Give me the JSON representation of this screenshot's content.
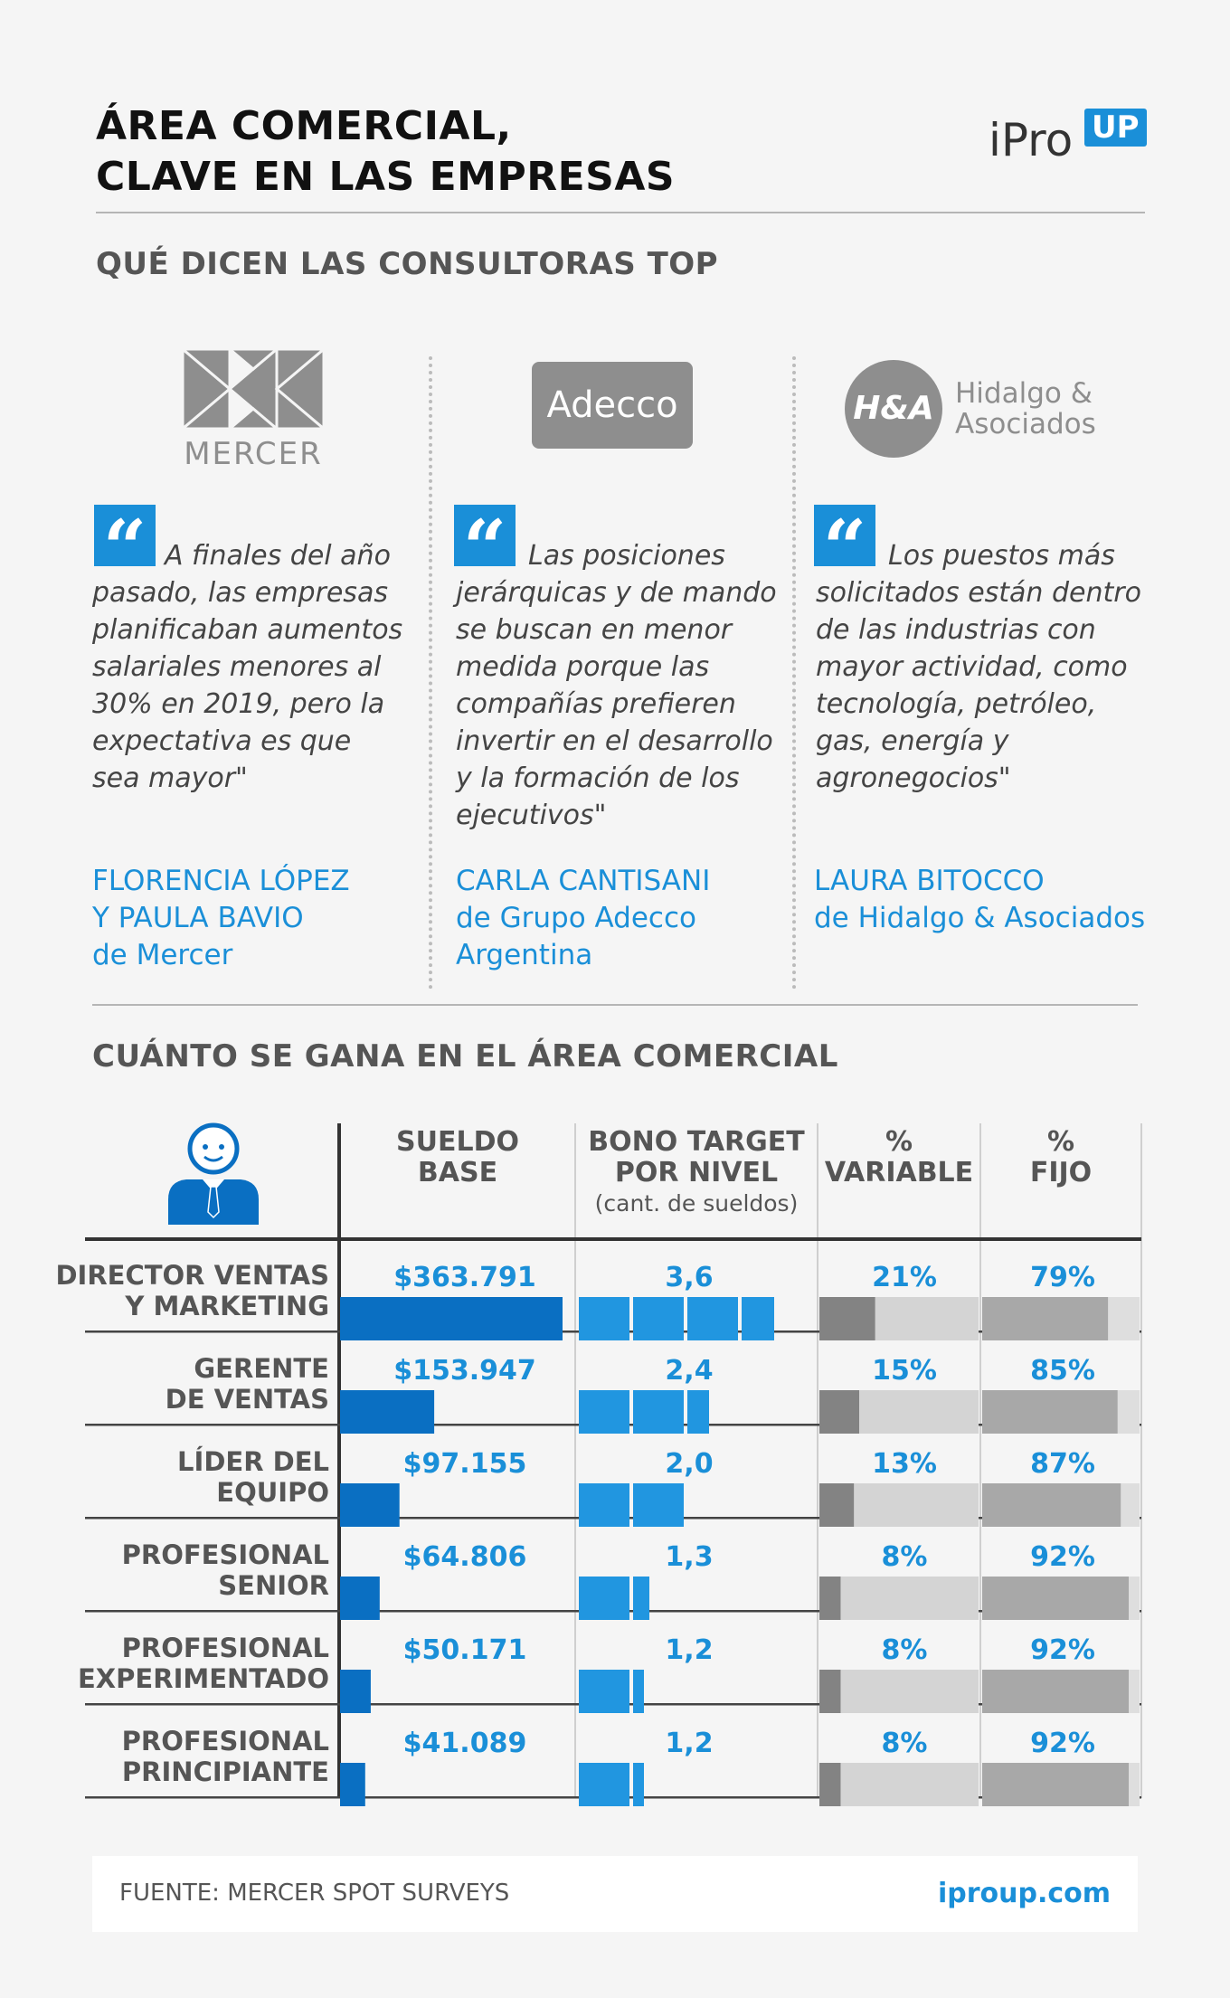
{
  "header": {
    "title": "ÁREA COMERCIAL,\nCLAVE EN LAS EMPRESAS",
    "logo_ipro": "iPro",
    "logo_up": "UP"
  },
  "consultoras": {
    "heading": "QUÉ DICEN LAS CONSULTORAS TOP",
    "logos": {
      "mercer": "MERCER",
      "adecco": "Adecco",
      "hya_mark": "H&A",
      "hya_name": "Hidalgo &\nAsociados"
    },
    "quotes": [
      {
        "lines": [
          "A finales del año",
          "pasado, las empresas",
          "planificaban aumentos",
          "salariales menores al",
          "30% en 2019, pero la",
          "expectativa es que",
          "sea mayor\""
        ],
        "author": "FLORENCIA LÓPEZ\nY PAULA BAVIO\nde Mercer"
      },
      {
        "lines": [
          "Las posiciones",
          "jerárquicas y de mando",
          "se buscan en menor",
          "medida porque las",
          "compañías prefieren",
          "invertir en el desarrollo",
          "y la formación de los",
          "ejecutivos\""
        ],
        "author": "CARLA CANTISANI\nde Grupo Adecco\nArgentina"
      },
      {
        "lines": [
          "Los puestos más",
          "solicitados están dentro",
          "de las industrias con",
          "mayor actividad, como",
          "tecnología, petróleo,",
          "gas, energía  y",
          "agronegocios\""
        ],
        "author": "LAURA BITOCCO\nde Hidalgo & Asociados"
      }
    ]
  },
  "salarios": {
    "heading": "CUÁNTO SE GANA EN EL ÁREA COMERCIAL",
    "col_sueldo": "SUELDO\nBASE",
    "col_bono": "BONO TARGET\nPOR NIVEL",
    "col_bono_sub": "(cant. de sueldos)",
    "col_variable": "%\nVARIABLE",
    "col_fijo": "%\nFIJO"
  },
  "chart_data": {
    "type": "table",
    "title": "CUÁNTO SE GANA EN EL ÁREA COMERCIAL",
    "columns": [
      "SUELDO BASE",
      "BONO TARGET POR NIVEL (cant. de sueldos)",
      "% VARIABLE",
      "% FIJO"
    ],
    "categories": [
      "DIRECTOR VENTAS\nY MARKETING",
      "GERENTE\nDE VENTAS",
      "LÍDER DEL\nEQUIPO",
      "PROFESIONAL\nSENIOR",
      "PROFESIONAL\nEXPERIMENTADO",
      "PROFESIONAL\nPRINCIPIANTE"
    ],
    "sueldo_labels": [
      "$363.791",
      "$153.947",
      "$97.155",
      "$64.806",
      "$50.171",
      "$41.089"
    ],
    "sueldo_values": [
      363791,
      153947,
      97155,
      64806,
      50171,
      41089
    ],
    "bono_labels": [
      "3,6",
      "2,4",
      "2,0",
      "1,3",
      "1,2",
      "1,2"
    ],
    "bono_values": [
      3.6,
      2.4,
      2.0,
      1.3,
      1.2,
      1.2
    ],
    "variable_labels": [
      "21%",
      "15%",
      "13%",
      "8%",
      "8%",
      "8%"
    ],
    "variable_values": [
      21,
      15,
      13,
      8,
      8,
      8
    ],
    "fijo_labels": [
      "79%",
      "85%",
      "87%",
      "92%",
      "92%",
      "92%"
    ],
    "fijo_values": [
      79,
      85,
      87,
      92,
      92,
      92
    ],
    "colors": {
      "sueldo": "#0a6fc2",
      "bono": "#2196e0",
      "variable": "#838383",
      "variable_track": "#d4d4d4",
      "fijo": "#a8a8a8",
      "fijo_track": "#dedede"
    }
  },
  "footer": {
    "source": "FUENTE: MERCER SPOT SURVEYS",
    "url": "iproup.com"
  }
}
